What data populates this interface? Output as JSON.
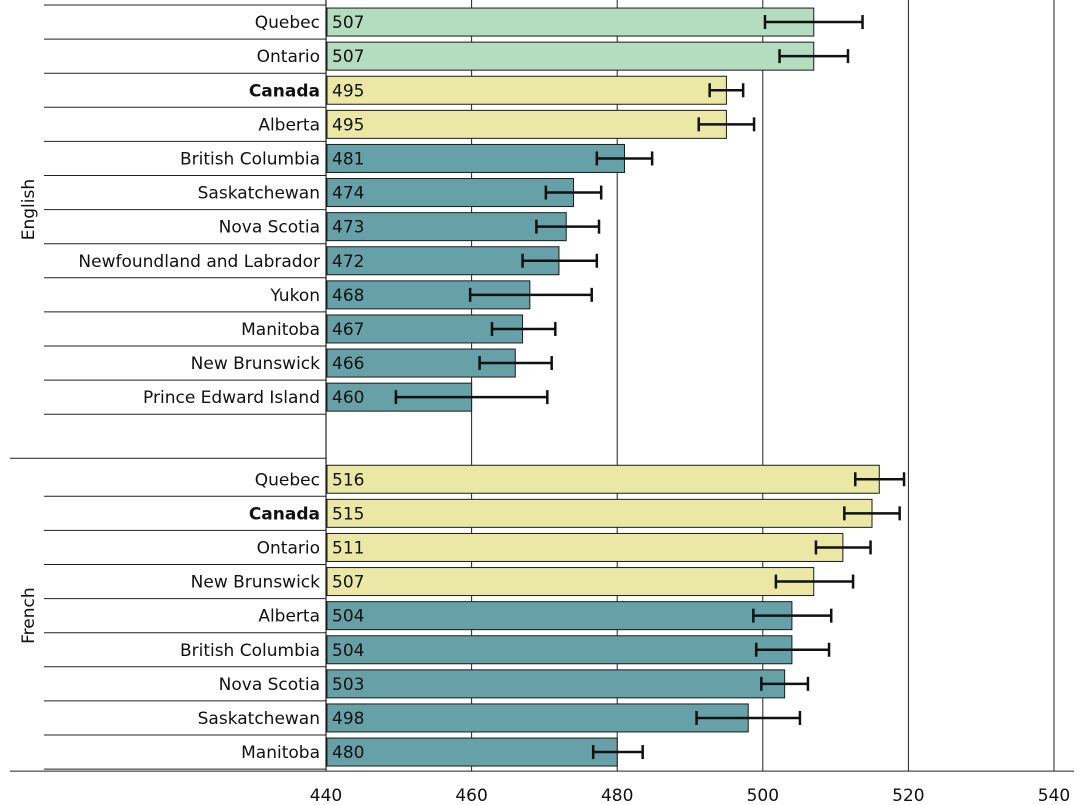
{
  "chart_data": {
    "type": "bar",
    "orientation": "horizontal",
    "xlim": [
      440,
      540
    ],
    "xticks": [
      440,
      460,
      480,
      500,
      520,
      540
    ],
    "colors": {
      "above": "#b4dcbe",
      "similar": "#ebe8a6",
      "below": "#67a1a8",
      "error": "#111111",
      "grid": "#222222"
    },
    "groups": [
      {
        "name": "English",
        "rows": [
          {
            "label": "Quebec",
            "value": 507,
            "ci": [
              500.3,
              513.7
            ],
            "category": "above",
            "bold": false
          },
          {
            "label": "Ontario",
            "value": 507,
            "ci": [
              502.3,
              511.7
            ],
            "category": "above",
            "bold": false
          },
          {
            "label": "Canada",
            "value": 495,
            "ci": [
              492.7,
              497.3
            ],
            "category": "similar",
            "bold": true
          },
          {
            "label": "Alberta",
            "value": 495,
            "ci": [
              491.2,
              498.8
            ],
            "category": "similar",
            "bold": false
          },
          {
            "label": "British Columbia",
            "value": 481,
            "ci": [
              477.2,
              484.8
            ],
            "category": "below",
            "bold": false
          },
          {
            "label": "Saskatchewan",
            "value": 474,
            "ci": [
              470.2,
              477.8
            ],
            "category": "below",
            "bold": false
          },
          {
            "label": "Nova Scotia",
            "value": 473,
            "ci": [
              468.9,
              477.5
            ],
            "category": "below",
            "bold": false
          },
          {
            "label": "Newfoundland and Labrador",
            "value": 472,
            "ci": [
              467.0,
              477.2
            ],
            "category": "below",
            "bold": false
          },
          {
            "label": "Yukon",
            "value": 468,
            "ci": [
              459.8,
              476.5
            ],
            "category": "below",
            "bold": false
          },
          {
            "label": "Manitoba",
            "value": 467,
            "ci": [
              462.8,
              471.5
            ],
            "category": "below",
            "bold": false
          },
          {
            "label": "New Brunswick",
            "value": 466,
            "ci": [
              461.1,
              471.0
            ],
            "category": "below",
            "bold": false
          },
          {
            "label": "Prince Edward Island",
            "value": 460,
            "ci": [
              449.6,
              470.4
            ],
            "category": "below",
            "bold": false
          }
        ]
      },
      {
        "name": "French",
        "rows": [
          {
            "label": "Quebec",
            "value": 516,
            "ci": [
              512.7,
              519.4
            ],
            "category": "similar",
            "bold": false
          },
          {
            "label": "Canada",
            "value": 515,
            "ci": [
              511.2,
              518.8
            ],
            "category": "similar",
            "bold": true
          },
          {
            "label": "Ontario",
            "value": 511,
            "ci": [
              507.3,
              514.8
            ],
            "category": "similar",
            "bold": false
          },
          {
            "label": "New Brunswick",
            "value": 507,
            "ci": [
              501.8,
              512.4
            ],
            "category": "similar",
            "bold": false
          },
          {
            "label": "Alberta",
            "value": 504,
            "ci": [
              498.7,
              509.4
            ],
            "category": "below",
            "bold": false
          },
          {
            "label": "British Columbia",
            "value": 504,
            "ci": [
              499.1,
              509.1
            ],
            "category": "below",
            "bold": false
          },
          {
            "label": "Nova Scotia",
            "value": 503,
            "ci": [
              499.8,
              506.2
            ],
            "category": "below",
            "bold": false
          },
          {
            "label": "Saskatchewan",
            "value": 498,
            "ci": [
              490.9,
              505.1
            ],
            "category": "below",
            "bold": false
          },
          {
            "label": "Manitoba",
            "value": 480,
            "ci": [
              476.7,
              483.5
            ],
            "category": "below",
            "bold": false
          }
        ]
      }
    ]
  }
}
